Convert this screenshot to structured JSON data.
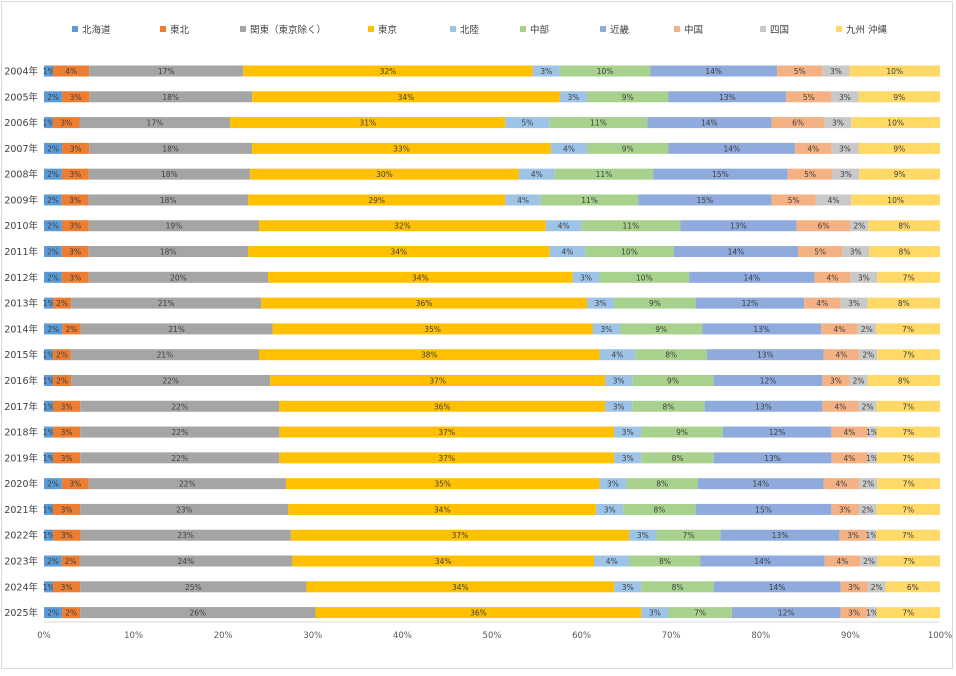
{
  "chart_data": {
    "type": "bar",
    "orientation": "horizontal",
    "stacked": "percent",
    "categories": [
      "2004年",
      "2005年",
      "2006年",
      "2007年",
      "2008年",
      "2009年",
      "2010年",
      "2011年",
      "2012年",
      "2013年",
      "2014年",
      "2015年",
      "2016年",
      "2017年",
      "2018年",
      "2019年",
      "2020年",
      "2021年",
      "2022年",
      "2023年",
      "2024年",
      "2025年"
    ],
    "series": [
      {
        "name": "北海道",
        "color": "#5B9BD5",
        "values": [
          1,
          2,
          1,
          2,
          2,
          2,
          2,
          2,
          2,
          1,
          2,
          1,
          1,
          1,
          1,
          1,
          2,
          1,
          1,
          2,
          1,
          2
        ]
      },
      {
        "name": "東北",
        "color": "#ED7D31",
        "values": [
          4,
          3,
          3,
          3,
          3,
          3,
          3,
          3,
          3,
          2,
          2,
          2,
          2,
          3,
          3,
          3,
          3,
          3,
          3,
          2,
          3,
          2
        ]
      },
      {
        "name": "関東（東京除く）",
        "color": "#A5A5A5",
        "values": [
          17,
          18,
          17,
          18,
          18,
          18,
          19,
          18,
          20,
          21,
          21,
          21,
          22,
          22,
          22,
          22,
          22,
          23,
          23,
          24,
          25,
          26
        ]
      },
      {
        "name": "東京",
        "color": "#FFC000",
        "values": [
          32,
          34,
          31,
          33,
          30,
          29,
          32,
          34,
          34,
          36,
          35,
          38,
          37,
          36,
          37,
          37,
          35,
          34,
          37,
          34,
          34,
          36
        ]
      },
      {
        "name": "北陸",
        "color": "#9DC3E6",
        "values": [
          3,
          3,
          5,
          4,
          4,
          4,
          4,
          4,
          3,
          3,
          3,
          4,
          3,
          3,
          3,
          3,
          3,
          3,
          3,
          4,
          3,
          3
        ]
      },
      {
        "name": "中部",
        "color": "#A9D18E",
        "values": [
          10,
          9,
          11,
          9,
          11,
          11,
          11,
          10,
          10,
          9,
          9,
          8,
          9,
          8,
          9,
          8,
          8,
          8,
          7,
          8,
          8,
          7
        ]
      },
      {
        "name": "近畿",
        "color": "#8FAADC",
        "values": [
          14,
          13,
          14,
          14,
          15,
          15,
          13,
          14,
          14,
          12,
          13,
          13,
          12,
          13,
          12,
          13,
          14,
          15,
          13,
          14,
          14,
          12
        ]
      },
      {
        "name": "中国",
        "color": "#F4B183",
        "values": [
          5,
          5,
          6,
          4,
          5,
          5,
          6,
          5,
          4,
          4,
          4,
          4,
          3,
          4,
          4,
          4,
          4,
          3,
          3,
          4,
          3,
          3
        ]
      },
      {
        "name": "四国",
        "color": "#C9C9C9",
        "values": [
          3,
          3,
          3,
          3,
          3,
          4,
          2,
          3,
          3,
          3,
          2,
          2,
          2,
          2,
          1,
          1,
          2,
          2,
          1,
          2,
          2,
          1
        ]
      },
      {
        "name": "九州 沖縄",
        "color": "#FFD966",
        "values": [
          10,
          9,
          10,
          9,
          9,
          10,
          8,
          8,
          7,
          8,
          7,
          7,
          8,
          7,
          7,
          7,
          7,
          7,
          7,
          7,
          6,
          7
        ]
      }
    ],
    "xlim": [
      0,
      100
    ],
    "xticks": [
      "0%",
      "10%",
      "20%",
      "30%",
      "40%",
      "50%",
      "60%",
      "70%",
      "80%",
      "90%",
      "100%"
    ],
    "legend": "top",
    "grid": false
  }
}
